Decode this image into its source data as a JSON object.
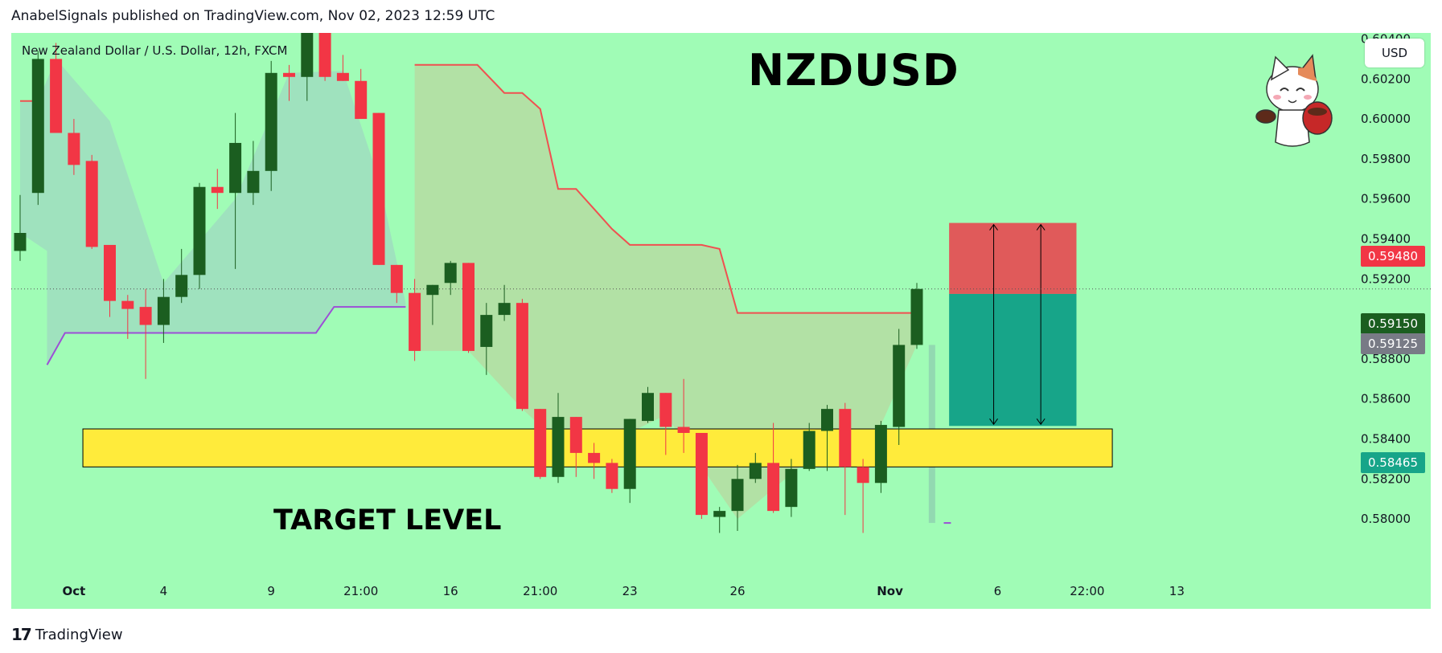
{
  "header": {
    "published": "AnabelSignals published on TradingView.com, Nov 02, 2023 12:59 UTC"
  },
  "symbol_description": "New Zealand Dollar / U.S. Dollar, 12h, FXCM",
  "big_title": "NZDUSD",
  "target_label": "TARGET LEVEL",
  "currency_button": "USD",
  "footer": {
    "logo_mark": "17",
    "logo_text": "TradingView"
  },
  "colors": {
    "background": "#a0fcb6",
    "bull": "#1b5e20",
    "bear": "#f23645",
    "stop_zone": "#e05a5a",
    "target_zone": "#17a589",
    "target_band": "#ffeb3b",
    "resistance_line": "#f05050",
    "support_line": "#9c4fd6"
  },
  "price_tags": [
    {
      "label": "0.59480",
      "color": "#f23645"
    },
    {
      "label": "0.59150",
      "color": "#1b5e20"
    },
    {
      "label": "0.59125",
      "color": "#787b86"
    },
    {
      "label": "0.58465",
      "color": "#17a589"
    }
  ],
  "chart_data": {
    "type": "candlestick",
    "title": "NZDUSD",
    "subtitle": "New Zealand Dollar / U.S. Dollar, 12h, FXCM",
    "ylim": [
      0.5792,
      0.6043
    ],
    "y_ticks": [
      "0.58000",
      "0.58200",
      "0.58400",
      "0.58600",
      "0.58800",
      "0.59000",
      "0.59200",
      "0.59400",
      "0.59600",
      "0.59800",
      "0.60000",
      "0.60200",
      "0.60400"
    ],
    "x_ticks": [
      {
        "label": "Oct",
        "index": 3
      },
      {
        "label": "4",
        "index": 8
      },
      {
        "label": "9",
        "index": 14
      },
      {
        "label": "21:00",
        "index": 19
      },
      {
        "label": "16",
        "index": 24
      },
      {
        "label": "21:00",
        "index": 29
      },
      {
        "label": "23",
        "index": 34
      },
      {
        "label": "26",
        "index": 40
      },
      {
        "label": "Nov",
        "index": 48.5
      },
      {
        "label": "6",
        "index": 54.5
      },
      {
        "label": "22:00",
        "index": 59.5
      },
      {
        "label": "13",
        "index": 64.5
      }
    ],
    "last_price": 0.5915,
    "candles": [
      {
        "o": 0.5934,
        "h": 0.5962,
        "l": 0.5929,
        "c": 0.5943
      },
      {
        "o": 0.5963,
        "h": 0.6034,
        "l": 0.5957,
        "c": 0.603
      },
      {
        "o": 0.603,
        "h": 0.6038,
        "l": 0.5995,
        "c": 0.5993
      },
      {
        "o": 0.5993,
        "h": 0.6,
        "l": 0.5972,
        "c": 0.5977
      },
      {
        "o": 0.5979,
        "h": 0.5982,
        "l": 0.5935,
        "c": 0.5936
      },
      {
        "o": 0.5937,
        "h": 0.5937,
        "l": 0.5901,
        "c": 0.5909
      },
      {
        "o": 0.5909,
        "h": 0.5912,
        "l": 0.589,
        "c": 0.5905
      },
      {
        "o": 0.5906,
        "h": 0.5915,
        "l": 0.587,
        "c": 0.5897
      },
      {
        "o": 0.5897,
        "h": 0.592,
        "l": 0.5888,
        "c": 0.5911
      },
      {
        "o": 0.5911,
        "h": 0.5935,
        "l": 0.5908,
        "c": 0.5922
      },
      {
        "o": 0.5922,
        "h": 0.5968,
        "l": 0.5915,
        "c": 0.5966
      },
      {
        "o": 0.5966,
        "h": 0.5975,
        "l": 0.5955,
        "c": 0.5963
      },
      {
        "o": 0.5963,
        "h": 0.6003,
        "l": 0.5925,
        "c": 0.5988
      },
      {
        "o": 0.5963,
        "h": 0.5989,
        "l": 0.5957,
        "c": 0.5974
      },
      {
        "o": 0.5974,
        "h": 0.6029,
        "l": 0.5964,
        "c": 0.6023
      },
      {
        "o": 0.6023,
        "h": 0.6027,
        "l": 0.6009,
        "c": 0.6021
      },
      {
        "o": 0.6021,
        "h": 0.6049,
        "l": 0.6009,
        "c": 0.6046
      },
      {
        "o": 0.6046,
        "h": 0.6058,
        "l": 0.6019,
        "c": 0.6021
      },
      {
        "o": 0.6023,
        "h": 0.6032,
        "l": 0.6019,
        "c": 0.6019
      },
      {
        "o": 0.6019,
        "h": 0.6025,
        "l": 0.6,
        "c": 0.6
      },
      {
        "o": 0.6003,
        "h": 0.6003,
        "l": 0.5927,
        "c": 0.5927
      },
      {
        "o": 0.5927,
        "h": 0.5927,
        "l": 0.5908,
        "c": 0.5913
      },
      {
        "o": 0.5913,
        "h": 0.592,
        "l": 0.5879,
        "c": 0.5884
      },
      {
        "o": 0.5912,
        "h": 0.5917,
        "l": 0.5897,
        "c": 0.5917
      },
      {
        "o": 0.5918,
        "h": 0.5929,
        "l": 0.5912,
        "c": 0.5928
      },
      {
        "o": 0.5928,
        "h": 0.5928,
        "l": 0.5883,
        "c": 0.5884
      },
      {
        "o": 0.5886,
        "h": 0.5908,
        "l": 0.5872,
        "c": 0.5902
      },
      {
        "o": 0.5902,
        "h": 0.5917,
        "l": 0.5899,
        "c": 0.5908
      },
      {
        "o": 0.5908,
        "h": 0.591,
        "l": 0.5854,
        "c": 0.5855
      },
      {
        "o": 0.5855,
        "h": 0.5855,
        "l": 0.582,
        "c": 0.5821
      },
      {
        "o": 0.5821,
        "h": 0.5863,
        "l": 0.5818,
        "c": 0.5851
      },
      {
        "o": 0.5851,
        "h": 0.5851,
        "l": 0.5821,
        "c": 0.5833
      },
      {
        "o": 0.5833,
        "h": 0.5838,
        "l": 0.582,
        "c": 0.5828
      },
      {
        "o": 0.5828,
        "h": 0.583,
        "l": 0.5813,
        "c": 0.5815
      },
      {
        "o": 0.5815,
        "h": 0.585,
        "l": 0.5808,
        "c": 0.585
      },
      {
        "o": 0.5849,
        "h": 0.5866,
        "l": 0.5848,
        "c": 0.5863
      },
      {
        "o": 0.5863,
        "h": 0.5863,
        "l": 0.5832,
        "c": 0.5846
      },
      {
        "o": 0.5846,
        "h": 0.587,
        "l": 0.5833,
        "c": 0.5843
      },
      {
        "o": 0.5843,
        "h": 0.5843,
        "l": 0.58,
        "c": 0.5802
      },
      {
        "o": 0.5801,
        "h": 0.5806,
        "l": 0.5793,
        "c": 0.5804
      },
      {
        "o": 0.5804,
        "h": 0.5827,
        "l": 0.5794,
        "c": 0.582
      },
      {
        "o": 0.582,
        "h": 0.5833,
        "l": 0.5818,
        "c": 0.5828
      },
      {
        "o": 0.5828,
        "h": 0.5848,
        "l": 0.5803,
        "c": 0.5804
      },
      {
        "o": 0.5806,
        "h": 0.583,
        "l": 0.5801,
        "c": 0.5825
      },
      {
        "o": 0.5825,
        "h": 0.5848,
        "l": 0.5824,
        "c": 0.5844
      },
      {
        "o": 0.5844,
        "h": 0.5857,
        "l": 0.5824,
        "c": 0.5855
      },
      {
        "o": 0.5855,
        "h": 0.5858,
        "l": 0.5802,
        "c": 0.5826
      },
      {
        "o": 0.5826,
        "h": 0.583,
        "l": 0.5793,
        "c": 0.5818
      },
      {
        "o": 0.5818,
        "h": 0.5849,
        "l": 0.5813,
        "c": 0.5847
      },
      {
        "o": 0.5846,
        "h": 0.5895,
        "l": 0.5837,
        "c": 0.5887
      },
      {
        "o": 0.5887,
        "h": 0.5918,
        "l": 0.5885,
        "c": 0.5915
      }
    ],
    "position": {
      "entry": 0.59125,
      "stop": 0.5948,
      "target": 0.58465,
      "start_index": 51.8,
      "end_index": 58.9
    },
    "target_zone": {
      "low": 0.5826,
      "high": 0.5845,
      "start_index": 3.5,
      "end_index": 60.9,
      "label": "TARGET LEVEL"
    },
    "indicator": {
      "upper_1": [
        [
          0,
          0.6009
        ],
        [
          1,
          0.6009
        ]
      ],
      "upper_2": [
        [
          22,
          0.6027
        ],
        [
          25.5,
          0.6027
        ],
        [
          27,
          0.6013
        ],
        [
          28,
          0.6013
        ],
        [
          29,
          0.6005
        ],
        [
          30,
          0.5965
        ],
        [
          31,
          0.5965
        ],
        [
          32,
          0.5955
        ],
        [
          33,
          0.5945
        ],
        [
          34,
          0.5937
        ],
        [
          38,
          0.5937
        ],
        [
          39,
          0.5935
        ],
        [
          40,
          0.5903
        ],
        [
          50,
          0.5903
        ]
      ],
      "lower_1": [
        [
          1.5,
          0.5877
        ],
        [
          2.5,
          0.5893
        ],
        [
          16.5,
          0.5893
        ],
        [
          17.5,
          0.5906
        ],
        [
          21.5,
          0.5906
        ]
      ],
      "lower_2": [
        [
          51.5,
          0.5798
        ],
        [
          51.9,
          0.5798
        ]
      ]
    }
  }
}
